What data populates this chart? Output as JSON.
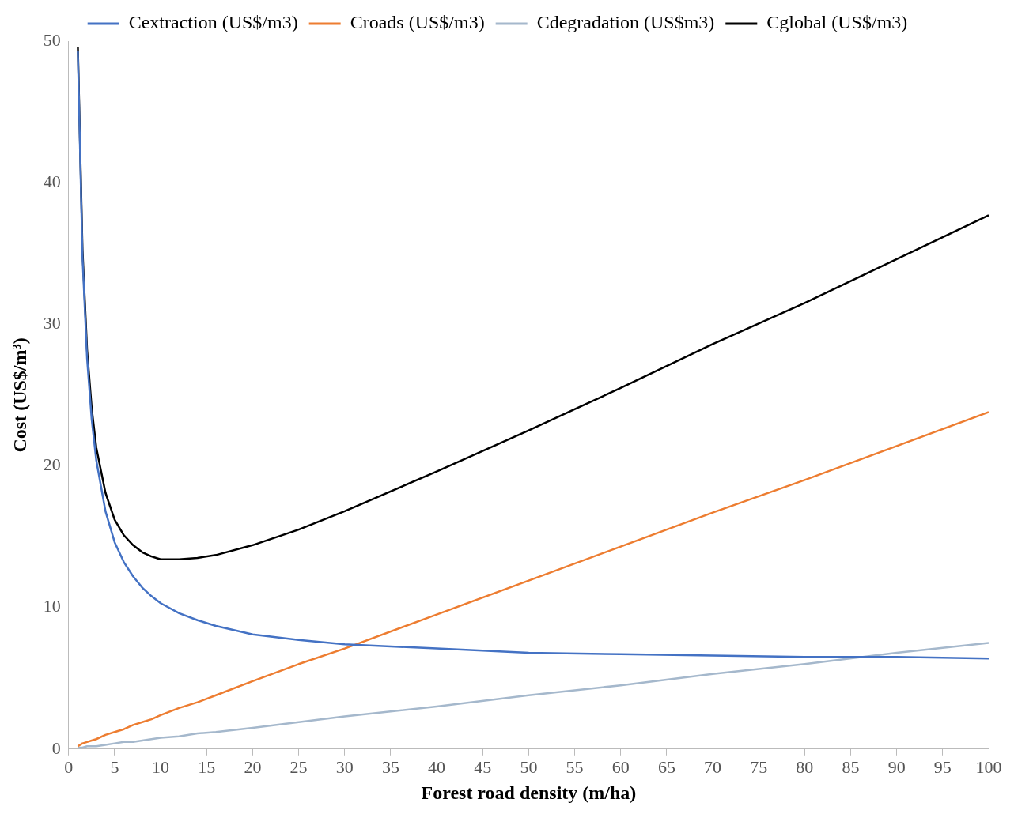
{
  "chart_data": {
    "type": "line",
    "xlabel": "Forest road density (m/ha)",
    "ylabel": "Cost (US$/m³)",
    "x": [
      1,
      1.5,
      2,
      2.5,
      3,
      4,
      5,
      6,
      7,
      8,
      9,
      10,
      12,
      14,
      16,
      20,
      25,
      30,
      40,
      50,
      60,
      70,
      80,
      90,
      100
    ],
    "xlim": [
      0,
      100
    ],
    "xticks": [
      0,
      5,
      10,
      15,
      20,
      25,
      30,
      35,
      40,
      45,
      50,
      55,
      60,
      65,
      70,
      75,
      80,
      85,
      90,
      95,
      100
    ],
    "ylim": [
      0,
      50
    ],
    "yticks": [
      0,
      10,
      20,
      30,
      40,
      50
    ],
    "grid": false,
    "legend": "top",
    "marker": "none",
    "line_style": "solid",
    "series": [
      {
        "name": "Cextraction (US$/m3)",
        "color": "#4472c4",
        "values": [
          49.3,
          34.8,
          27.6,
          23.3,
          20.4,
          16.8,
          14.6,
          13.2,
          12.2,
          11.4,
          10.8,
          10.3,
          9.6,
          9.1,
          8.7,
          8.1,
          7.7,
          7.4,
          7.1,
          6.8,
          6.7,
          6.6,
          6.5,
          6.5,
          6.4
        ]
      },
      {
        "name": "Croads (US$/m3)",
        "color": "#ed7d31",
        "values": [
          0.2,
          0.4,
          0.5,
          0.6,
          0.7,
          1.0,
          1.2,
          1.4,
          1.7,
          1.9,
          2.1,
          2.4,
          2.9,
          3.3,
          3.8,
          4.8,
          6.0,
          7.1,
          9.5,
          11.9,
          14.3,
          16.7,
          19.0,
          21.4,
          23.8
        ]
      },
      {
        "name": "Cdegradation (US$m3)",
        "color": "#a5b8cc",
        "values": [
          0.1,
          0.1,
          0.2,
          0.2,
          0.2,
          0.3,
          0.4,
          0.5,
          0.5,
          0.6,
          0.7,
          0.8,
          0.9,
          1.1,
          1.2,
          1.5,
          1.9,
          2.3,
          3.0,
          3.8,
          4.5,
          5.3,
          6.0,
          6.8,
          7.5
        ]
      },
      {
        "name": "Cglobal (US$/m3)",
        "color": "#000000",
        "values": [
          49.6,
          35.3,
          28.2,
          24.1,
          21.3,
          18.1,
          16.2,
          15.1,
          14.4,
          13.9,
          13.6,
          13.4,
          13.4,
          13.5,
          13.7,
          14.4,
          15.5,
          16.8,
          19.6,
          22.5,
          25.5,
          28.6,
          31.5,
          34.6,
          37.7
        ]
      }
    ]
  }
}
